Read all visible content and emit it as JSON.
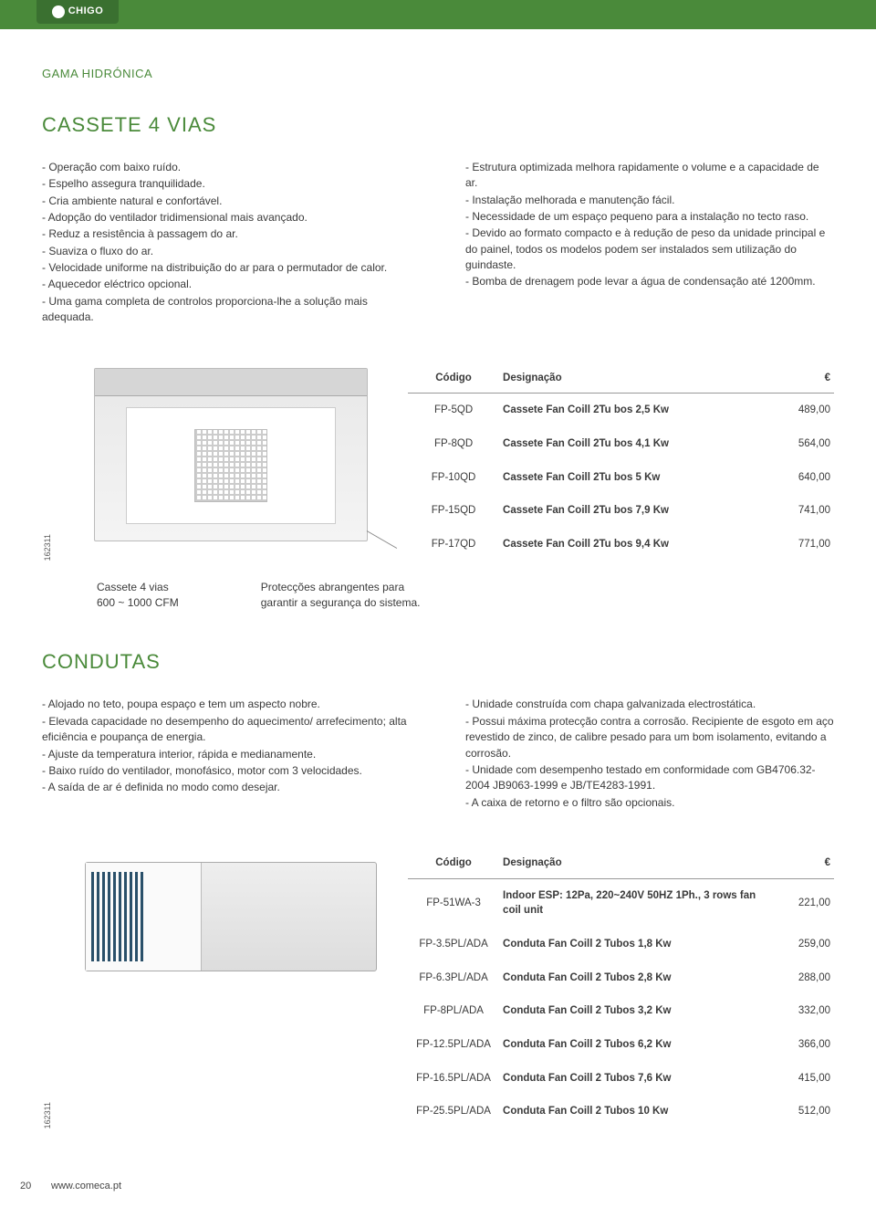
{
  "brand": "CHIGO",
  "sectionLabel": "GAMA HIDRÓNICA",
  "cassette": {
    "heading": "CASSETE 4 VIAS",
    "leftBullets": [
      "- Operação com baixo ruído.",
      "- Espelho assegura tranquilidade.",
      "- Cria ambiente natural e confortável.",
      "- Adopção do ventilador tridimensional mais avançado.",
      "- Reduz a resistência à passagem do ar.",
      "- Suaviza o fluxo do ar.",
      "- Velocidade uniforme na distribuição do ar para o permutador de calor.",
      "- Aquecedor eléctrico opcional.",
      "- Uma gama completa de controlos proporciona-lhe a solução mais adequada."
    ],
    "rightBullets": [
      "- Estrutura optimizada melhora rapidamente o volume e a capacidade de ar.",
      "- Instalação melhorada e manutenção fácil.",
      "- Necessidade de um espaço pequeno para a instalação no tecto raso.",
      "- Devido ao formato compacto e à redução de peso da unidade principal e do painel, todos os modelos podem ser instalados sem utilização do guindaste.",
      "- Bomba de drenagem pode levar a água de condensação até 1200mm."
    ],
    "imageCode": "162311",
    "caption1": "Cassete 4 vias\n600 ~ 1000 CFM",
    "caption2": "Protecções abrangentes para garantir a segurança do sistema.",
    "tableHeaders": {
      "code": "Código",
      "desc": "Designação",
      "price": "€"
    },
    "rows": [
      {
        "code": "FP-5QD",
        "desc": "Cassete Fan Coill 2Tu bos 2,5 Kw",
        "price": "489,00"
      },
      {
        "code": "FP-8QD",
        "desc": "Cassete Fan Coill 2Tu bos 4,1 Kw",
        "price": "564,00"
      },
      {
        "code": "FP-10QD",
        "desc": "Cassete Fan Coill 2Tu bos 5 Kw",
        "price": "640,00"
      },
      {
        "code": "FP-15QD",
        "desc": "Cassete Fan Coill 2Tu bos 7,9 Kw",
        "price": "741,00"
      },
      {
        "code": "FP-17QD",
        "desc": "Cassete Fan Coill 2Tu bos 9,4 Kw",
        "price": "771,00"
      }
    ]
  },
  "condutas": {
    "heading": "CONDUTAS",
    "leftBullets": [
      "- Alojado no teto, poupa espaço e tem um aspecto nobre.",
      "- Elevada capacidade no desempenho do aquecimento/ arrefecimento; alta eficiência e poupança de energia.",
      "- Ajuste da temperatura interior, rápida e medianamente.",
      "- Baixo ruído do ventilador, monofásico, motor com 3 velocidades.",
      "- A saída de ar é definida no modo como desejar."
    ],
    "rightBullets": [
      "- Unidade construída com chapa galvanizada electrostática.",
      "- Possui máxima protecção contra a corrosão. Recipiente de esgoto em aço revestido de zinco, de calibre pesado para um bom isolamento, evitando a corrosão.",
      "- Unidade com desempenho testado em conformidade com GB4706.32-2004 JB9063-1999 e JB/TE4283-1991.",
      "- A caixa de retorno e o filtro são opcionais."
    ],
    "imageCode": "162311",
    "tableHeaders": {
      "code": "Código",
      "desc": "Designação",
      "price": "€"
    },
    "rows": [
      {
        "code": "FP-51WA-3",
        "desc": "Indoor ESP: 12Pa, 220~240V 50HZ 1Ph., 3 rows fan coil unit",
        "price": "221,00"
      },
      {
        "code": "FP-3.5PL/ADA",
        "desc": "Conduta Fan Coill 2 Tubos 1,8 Kw",
        "price": "259,00"
      },
      {
        "code": "FP-6.3PL/ADA",
        "desc": "Conduta Fan Coill 2 Tubos 2,8 Kw",
        "price": "288,00"
      },
      {
        "code": "FP-8PL/ADA",
        "desc": "Conduta Fan Coill 2 Tubos 3,2 Kw",
        "price": "332,00"
      },
      {
        "code": "FP-12.5PL/ADA",
        "desc": "Conduta Fan Coill 2 Tubos 6,2 Kw",
        "price": "366,00"
      },
      {
        "code": "FP-16.5PL/ADA",
        "desc": "Conduta Fan Coill 2 Tubos 7,6 Kw",
        "price": "415,00"
      },
      {
        "code": "FP-25.5PL/ADA",
        "desc": "Conduta Fan Coill 2 Tubos 10 Kw",
        "price": "512,00"
      }
    ]
  },
  "footer": {
    "pageNumber": "20",
    "url": "www.comeca.pt"
  }
}
